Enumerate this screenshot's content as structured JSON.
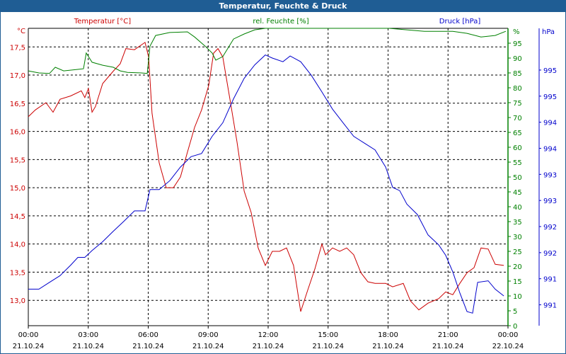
{
  "window": {
    "title": "Temperatur, Feuchte & Druck"
  },
  "colors": {
    "temperature": "#cc0000",
    "humidity": "#008000",
    "pressure": "#0000cc",
    "titlebar": "#1f5d94"
  },
  "chart_data": {
    "type": "line",
    "title": "Temperatur, Feuchte & Druck",
    "x_unit": "hours since 21.10.24 00:00",
    "xlim": [
      0,
      24
    ],
    "x_ticks": [
      {
        "time": "00:00",
        "date": "21.10.24",
        "h": 0
      },
      {
        "time": "03:00",
        "date": "21.10.24",
        "h": 3
      },
      {
        "time": "06:00",
        "date": "21.10.24",
        "h": 6
      },
      {
        "time": "09:00",
        "date": "21.10.24",
        "h": 9
      },
      {
        "time": "12:00",
        "date": "21.10.24",
        "h": 12
      },
      {
        "time": "15:00",
        "date": "21.10.24",
        "h": 15
      },
      {
        "time": "18:00",
        "date": "21.10.24",
        "h": 18
      },
      {
        "time": "21:00",
        "date": "21.10.24",
        "h": 21
      },
      {
        "time": "00:00",
        "date": "22.10.24",
        "h": 24
      }
    ],
    "axes": {
      "temperature": {
        "legend": "Temperatur [°C]",
        "unit": "°C",
        "ylim": [
          12.55,
          17.83
        ],
        "ticks": [
          "13,0",
          "13,5",
          "14,0",
          "14,5",
          "15,0",
          "15,5",
          "16,0",
          "16,5",
          "17,0",
          "17,5"
        ],
        "tick_values": [
          13,
          13.5,
          14,
          14.5,
          15,
          15.5,
          16,
          16.5,
          17,
          17.5
        ]
      },
      "humidity": {
        "legend": "rel. Feuchte [%]",
        "unit": "%",
        "ylim": [
          0,
          100
        ],
        "ticks": [
          "0",
          "5",
          "10",
          "15",
          "20",
          "25",
          "30",
          "35",
          "40",
          "45",
          "50",
          "55",
          "60",
          "65",
          "70",
          "75",
          "80",
          "85",
          "90",
          "95"
        ],
        "tick_values": [
          0,
          5,
          10,
          15,
          20,
          25,
          30,
          35,
          40,
          45,
          50,
          55,
          60,
          65,
          70,
          75,
          80,
          85,
          90,
          95
        ]
      },
      "pressure": {
        "legend": "Druck [hPa]",
        "unit": "hPa",
        "ylim": [
          990.2,
          995.9
        ],
        "ticks": [
          "991",
          "991",
          "992",
          "992",
          "993",
          "993",
          "994",
          "994",
          "995",
          "995"
        ],
        "tick_values": [
          990.6,
          991.1,
          991.6,
          992.1,
          992.6,
          993.1,
          993.6,
          994.1,
          994.6,
          995.1
        ]
      }
    },
    "series": [
      {
        "name": "Temperatur [°C]",
        "axis": "temperature",
        "x": [
          0,
          0.35,
          0.88,
          1.24,
          1.59,
          2.12,
          2.65,
          2.83,
          3.01,
          3.19,
          3.36,
          3.72,
          4.25,
          4.6,
          4.88,
          5.31,
          5.84,
          6.02,
          6.19,
          6.55,
          6.9,
          7.26,
          7.61,
          7.96,
          8.32,
          8.67,
          9.03,
          9.27,
          9.49,
          9.73,
          10.09,
          10.44,
          10.8,
          11.15,
          11.5,
          11.86,
          12.21,
          12.57,
          12.92,
          13.27,
          13.63,
          13.98,
          14.34,
          14.69,
          14.87,
          15.22,
          15.58,
          15.93,
          16.28,
          16.64,
          16.99,
          17.35,
          17.88,
          18.23,
          18.76,
          19.12,
          19.54,
          20.0,
          20.53,
          20.88,
          21.24,
          21.59,
          21.95,
          22.3,
          22.65,
          23.01,
          23.36,
          23.79
        ],
        "values": [
          16.26,
          16.38,
          16.51,
          16.34,
          16.57,
          16.63,
          16.72,
          16.6,
          16.76,
          16.34,
          16.44,
          16.85,
          17.07,
          17.2,
          17.47,
          17.45,
          17.58,
          17.32,
          16.32,
          15.44,
          15.0,
          15.0,
          15.19,
          15.63,
          16.07,
          16.38,
          16.82,
          17.39,
          17.47,
          17.32,
          16.57,
          15.82,
          14.94,
          14.56,
          13.93,
          13.62,
          13.87,
          13.87,
          13.93,
          13.62,
          12.8,
          13.18,
          13.56,
          14.0,
          13.81,
          13.93,
          13.87,
          13.93,
          13.81,
          13.49,
          13.33,
          13.3,
          13.3,
          13.24,
          13.3,
          12.99,
          12.83,
          12.95,
          13.03,
          13.15,
          13.1,
          13.3,
          13.49,
          13.58,
          13.93,
          13.91,
          13.64,
          13.62
        ]
      },
      {
        "name": "rel. Feuchte [%]",
        "axis": "humidity",
        "x": [
          0,
          0.53,
          1.06,
          1.35,
          1.77,
          2.48,
          2.76,
          2.9,
          3.19,
          3.72,
          4.25,
          4.6,
          4.96,
          5.66,
          5.95,
          6.09,
          6.37,
          7.08,
          7.96,
          8.32,
          8.85,
          9.2,
          9.38,
          9.73,
          10.27,
          10.8,
          11.33,
          11.86,
          12.74,
          14.51,
          16.28,
          18.05,
          19.82,
          21.24,
          21.95,
          22.65,
          23.36,
          23.89
        ],
        "values": [
          85.7,
          85.0,
          84.8,
          86.9,
          85.7,
          86.2,
          86.4,
          91.7,
          88.6,
          87.6,
          86.9,
          85.7,
          85.2,
          85.0,
          84.8,
          94.0,
          97.6,
          98.6,
          98.8,
          97.1,
          94.0,
          91.7,
          89.3,
          90.5,
          96.4,
          98.1,
          99.5,
          100,
          100,
          100,
          100,
          100,
          99.0,
          99.0,
          98.3,
          97.1,
          97.6,
          99.0
        ]
      },
      {
        "name": "Druck [hPa]",
        "axis": "pressure",
        "x": [
          0,
          0.53,
          1.06,
          1.59,
          2.12,
          2.48,
          2.83,
          3.19,
          3.72,
          4.25,
          4.78,
          5.31,
          5.84,
          6.09,
          6.55,
          7.08,
          7.61,
          8.14,
          8.67,
          9.2,
          9.73,
          10.27,
          10.8,
          11.33,
          11.86,
          12.21,
          12.74,
          13.1,
          13.63,
          14.16,
          14.69,
          15.22,
          15.75,
          16.28,
          16.81,
          17.35,
          17.88,
          18.23,
          18.58,
          18.94,
          19.47,
          20.0,
          20.53,
          20.88,
          21.24,
          21.59,
          21.95,
          22.23,
          22.48,
          23.01,
          23.36,
          23.79
        ],
        "values": [
          990.9,
          990.9,
          991.03,
          991.16,
          991.36,
          991.51,
          991.51,
          991.64,
          991.81,
          992.01,
          992.2,
          992.4,
          992.4,
          992.81,
          992.81,
          992.98,
          993.24,
          993.44,
          993.5,
          993.83,
          994.09,
          994.55,
          994.94,
          995.2,
          995.39,
          995.33,
          995.26,
          995.37,
          995.26,
          995.0,
          994.68,
          994.35,
          994.09,
          993.83,
          993.7,
          993.57,
          993.24,
          992.85,
          992.79,
          992.53,
          992.33,
          991.94,
          991.75,
          991.55,
          991.23,
          990.83,
          990.47,
          990.44,
          991.03,
          991.06,
          990.9,
          990.77
        ]
      }
    ]
  }
}
